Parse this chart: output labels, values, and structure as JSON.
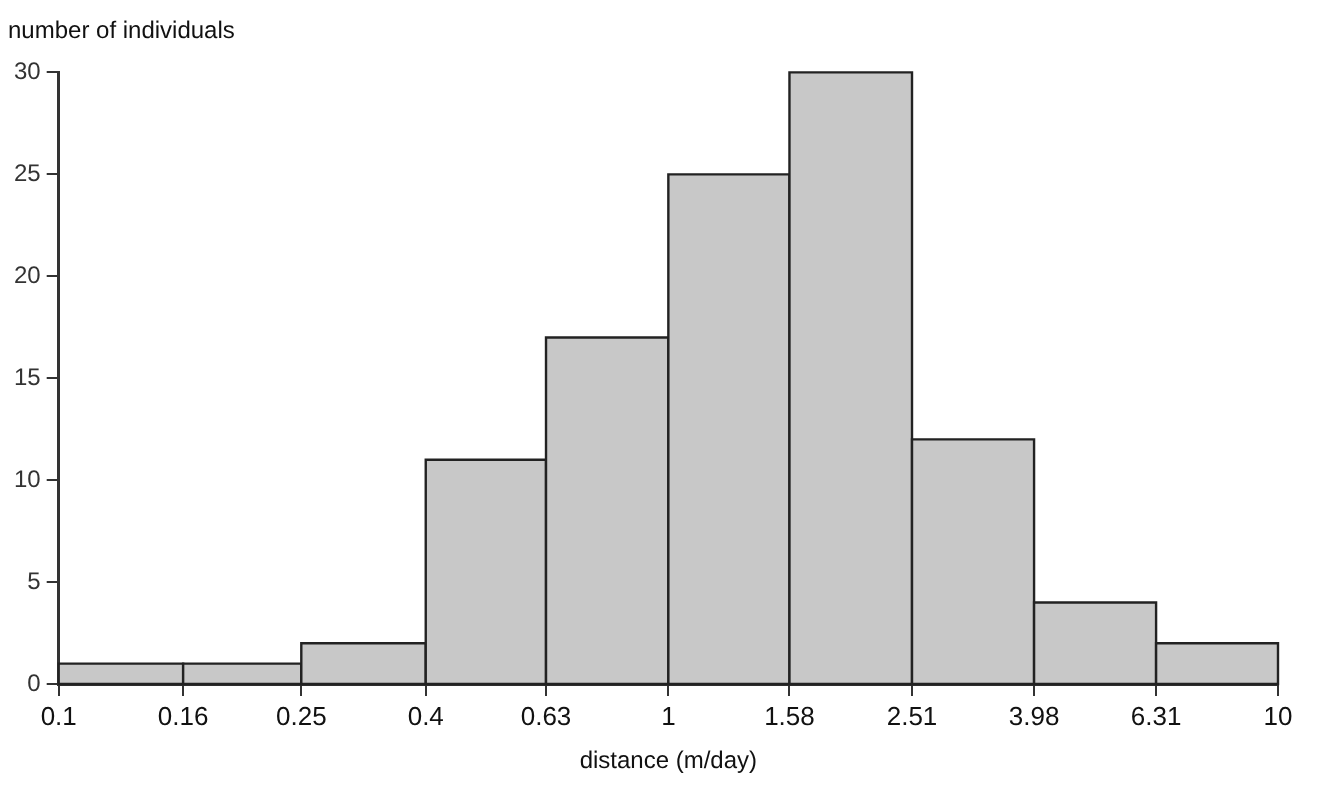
{
  "chart_data": {
    "type": "histogram",
    "xlabel": "distance (m/day)",
    "ylabel": "number of individuals",
    "bins": [
      0.1,
      0.16,
      0.25,
      0.4,
      0.63,
      1,
      1.58,
      2.51,
      3.98,
      6.31,
      10
    ],
    "values": [
      1,
      1,
      2,
      11,
      17,
      25,
      30,
      12,
      4,
      2
    ],
    "color": "#c8c8c8",
    "log": "x",
    "xlim": [
      0.1,
      10
    ],
    "xticks": [
      0.1,
      0.16,
      0.25,
      0.4,
      0.63,
      1,
      1.58,
      2.51,
      3.98,
      6.31,
      10
    ],
    "ylim": [
      0,
      30
    ],
    "yticks": [
      0,
      5,
      10,
      15,
      20,
      25,
      30
    ],
    "grid": false,
    "legend": false
  }
}
